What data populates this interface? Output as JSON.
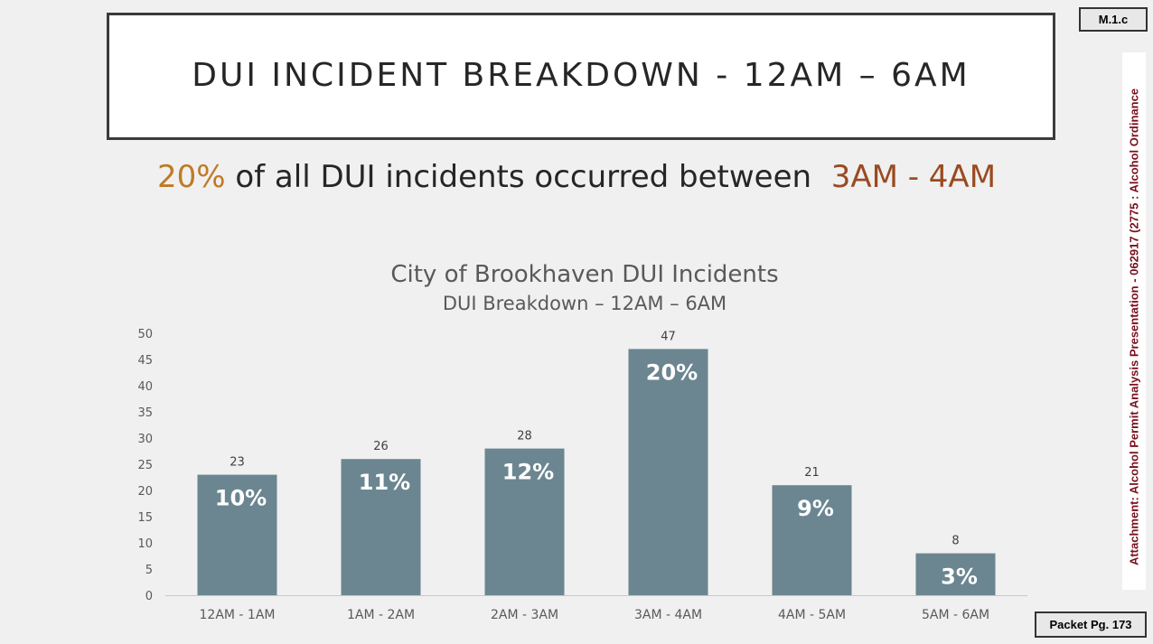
{
  "slide": {
    "title": "DUI INCIDENT BREAKDOWN - 12AM – 6AM",
    "headline_pct": "20%",
    "headline_mid": " of all DUI incidents occurred between  ",
    "headline_hour": "3AM - 4AM"
  },
  "colors": {
    "bar": "#6b8691",
    "headline_pct": "#c07a25",
    "headline_hour": "#9a4a21"
  },
  "chart_data": {
    "type": "bar",
    "title": "City of Brookhaven DUI Incidents",
    "subtitle": "DUI Breakdown – 12AM – 6AM",
    "categories": [
      "12AM - 1AM",
      "1AM - 2AM",
      "2AM - 3AM",
      "3AM - 4AM",
      "4AM - 5AM",
      "5AM - 6AM"
    ],
    "values": [
      23,
      26,
      28,
      47,
      21,
      8
    ],
    "percent_labels": [
      "10%",
      "11%",
      "12%",
      "20%",
      "9%",
      "3%"
    ],
    "ylim": [
      0,
      50
    ],
    "yticks": [
      0,
      5,
      10,
      15,
      20,
      25,
      30,
      35,
      40,
      45,
      50
    ],
    "grid": false,
    "legend": "none"
  },
  "document": {
    "tag": "M.1.c",
    "packet_page": "Packet Pg. 173",
    "attachment_note": "Attachment: Alcohol Permit Analysis Presentation - 062917  (2775 : Alcohol Ordinance"
  }
}
